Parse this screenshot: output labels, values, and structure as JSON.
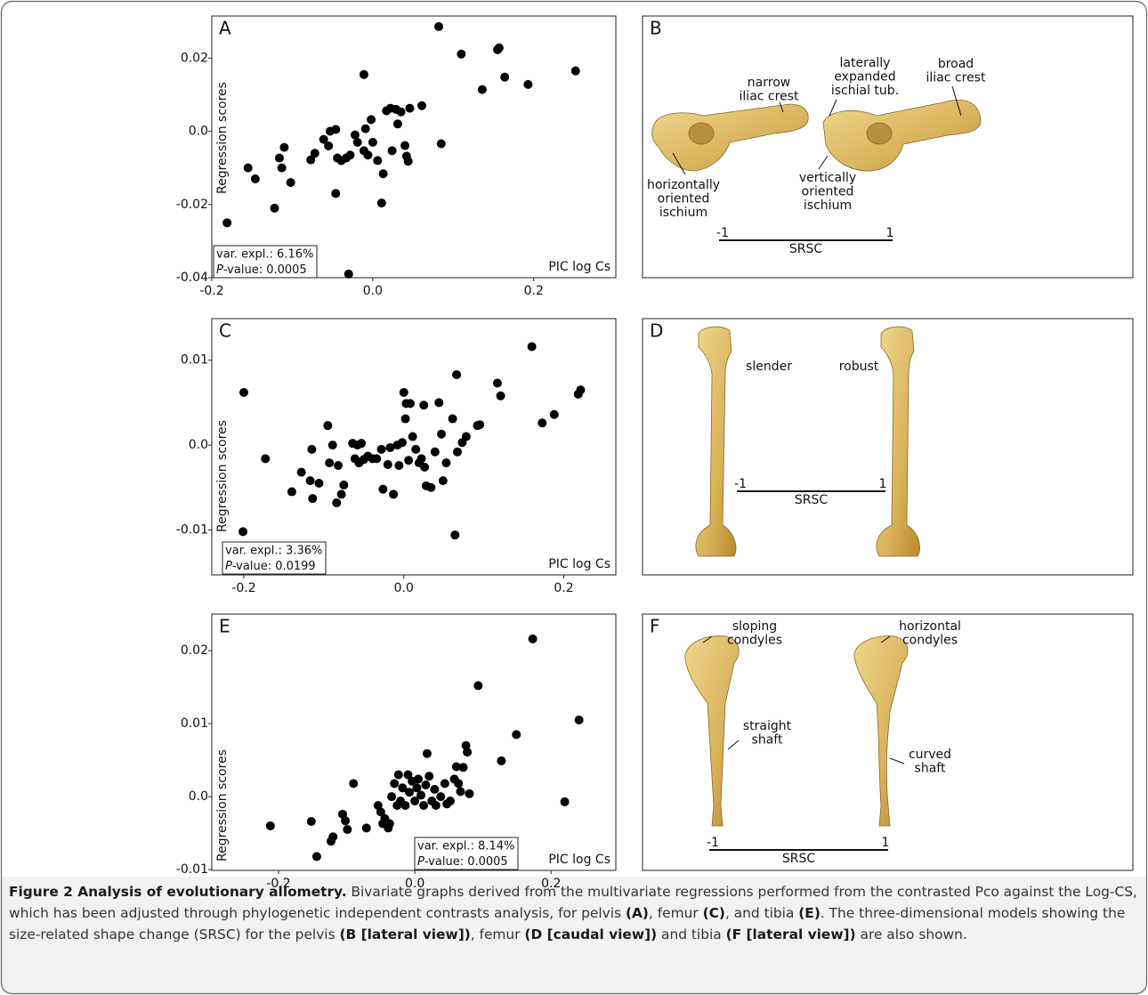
{
  "chart_data": [
    {
      "type": "scatter",
      "panel": "A",
      "ylabel": "Regression scores",
      "xlabel": "PIC log Cs",
      "xlim": [
        -0.2,
        0.302
      ],
      "ylim": [
        -0.04,
        0.0315
      ],
      "xticks": [
        -0.2,
        {
          "value": 0,
          "label": "0.0"
        },
        0.2
      ],
      "yticks": [
        -0.04,
        -0.02,
        {
          "value": 0,
          "label": "0.0"
        },
        0.02
      ],
      "stats": {
        "var_expl": "var. expl.: 6.16%",
        "p_italic": "P",
        "p_rest": "-value: 0.0005"
      },
      "x": [
        -0.181,
        -0.155,
        -0.146,
        -0.102,
        -0.122,
        -0.116,
        -0.113,
        -0.11,
        -0.077,
        -0.072,
        -0.061,
        -0.055,
        -0.053,
        -0.046,
        -0.046,
        -0.044,
        -0.039,
        -0.033,
        -0.03,
        -0.028,
        -0.022,
        -0.019,
        -0.011,
        -0.011,
        -0.009,
        -0.006,
        -0.002,
        0.0,
        0.006,
        0.011,
        0.013,
        0.017,
        0.022,
        0.024,
        0.029,
        0.031,
        0.035,
        0.04,
        0.042,
        0.044,
        0.046,
        0.061,
        0.082,
        0.085,
        0.11,
        0.136,
        0.155,
        0.157,
        0.164,
        0.193,
        0.252
      ],
      "series": [
        {
          "color": "#000000",
          "values": [
            -0.025,
            -0.01,
            -0.013,
            -0.014,
            -0.021,
            -0.0073,
            -0.01,
            -0.0044,
            -0.0078,
            -0.006,
            -0.0022,
            -0.004,
            0.0,
            0.0005,
            -0.017,
            -0.0073,
            -0.008,
            -0.0073,
            -0.039,
            -0.0065,
            -0.001,
            -0.003,
            0.0155,
            -0.0053,
            0.0007,
            -0.0065,
            0.0032,
            -0.003,
            -0.008,
            -0.0196,
            -0.0116,
            0.0056,
            0.0063,
            -0.0053,
            0.006,
            0.002,
            0.0053,
            -0.0039,
            -0.0068,
            -0.0082,
            0.0063,
            0.007,
            0.0286,
            -0.0034,
            0.0211,
            0.0114,
            0.0223,
            0.0228,
            0.0148,
            0.0128,
            0.0165
          ]
        }
      ]
    },
    {
      "type": "scatter",
      "panel": "C",
      "ylabel": "Regression scores",
      "xlabel": "PIC log Cs",
      "xlim": [
        -0.24,
        0.265
      ],
      "ylim": [
        -0.0153,
        0.0149
      ],
      "xticks": [
        -0.2,
        {
          "value": 0,
          "label": "0.0"
        },
        0.2
      ],
      "yticks": [
        -0.01,
        {
          "value": 0,
          "label": "0.0"
        },
        0.01
      ],
      "stats": {
        "var_expl": "var. expl.: 3.36%",
        "p_italic": "P",
        "p_rest": "-value: 0.0199"
      },
      "x": [
        -0.2,
        -0.201,
        -0.173,
        -0.14,
        -0.128,
        -0.117,
        -0.115,
        -0.114,
        -0.106,
        -0.095,
        -0.093,
        -0.089,
        -0.084,
        -0.082,
        -0.078,
        -0.075,
        -0.064,
        -0.061,
        -0.058,
        -0.056,
        -0.053,
        -0.05,
        -0.045,
        -0.039,
        -0.034,
        -0.028,
        -0.026,
        -0.02,
        -0.017,
        -0.013,
        -0.008,
        -0.006,
        -0.002,
        0.0,
        0.002,
        0.003,
        0.006,
        0.008,
        0.011,
        0.015,
        0.019,
        0.022,
        0.025,
        0.026,
        0.028,
        0.034,
        0.039,
        0.044,
        0.047,
        0.049,
        0.053,
        0.061,
        0.064,
        0.066,
        0.067,
        0.073,
        0.078,
        0.092,
        0.095,
        0.117,
        0.121,
        0.16,
        0.173,
        0.188,
        0.218,
        0.221
      ],
      "series": [
        {
          "color": "#000000",
          "values": [
            0.0062,
            -0.0102,
            -0.0016,
            -0.0055,
            -0.0032,
            -0.0042,
            -0.0005,
            -0.0063,
            -0.0045,
            0.0023,
            -0.0021,
            0.0,
            -0.0068,
            -0.0024,
            -0.0058,
            -0.0047,
            0.0002,
            -0.0016,
            0.0,
            -0.0021,
            0.0002,
            -0.0017,
            -0.0013,
            -0.0016,
            -0.0016,
            -0.0005,
            -0.0052,
            -0.0023,
            -0.0003,
            -0.0058,
            0.0,
            -0.0024,
            0.0003,
            0.0062,
            0.0031,
            0.0049,
            -0.0018,
            0.0049,
            0.001,
            -0.0005,
            -0.0021,
            -0.0016,
            0.0047,
            -0.0026,
            -0.0048,
            -0.005,
            -0.0008,
            0.005,
            0.0013,
            -0.0042,
            -0.0021,
            0.0031,
            -0.0106,
            0.0083,
            -0.0008,
            0.0003,
            0.001,
            0.0023,
            0.0024,
            0.0073,
            0.0058,
            0.0116,
            0.0026,
            0.0036,
            0.006,
            0.0065
          ]
        }
      ]
    },
    {
      "type": "scatter",
      "panel": "E",
      "ylabel": "Regression scores",
      "xlabel": "PIC log Cs",
      "xlim": [
        -0.298,
        0.295
      ],
      "ylim": [
        -0.0101,
        0.025
      ],
      "xticks": [
        -0.2,
        {
          "value": 0,
          "label": "0.0"
        },
        0.2
      ],
      "yticks": [
        -0.01,
        {
          "value": 0,
          "label": "0.0"
        },
        0.01,
        0.02
      ],
      "stats": {
        "var_expl": "var. expl.: 8.14%",
        "p_italic": "P",
        "p_rest": "-value: 0.0005"
      },
      "x": [
        -0.212,
        -0.152,
        -0.144,
        -0.123,
        -0.12,
        -0.106,
        -0.102,
        -0.099,
        -0.09,
        -0.071,
        -0.054,
        -0.05,
        -0.047,
        -0.044,
        -0.039,
        -0.037,
        -0.034,
        -0.03,
        -0.026,
        -0.024,
        -0.021,
        -0.018,
        -0.014,
        -0.01,
        -0.008,
        -0.004,
        0.0,
        0.003,
        0.005,
        0.009,
        0.013,
        0.016,
        0.018,
        0.021,
        0.025,
        0.029,
        0.031,
        0.038,
        0.044,
        0.047,
        0.052,
        0.058,
        0.061,
        0.064,
        0.067,
        0.071,
        0.075,
        0.077,
        0.08,
        0.093,
        0.127,
        0.149,
        0.173,
        0.22,
        0.241
      ],
      "series": [
        {
          "color": "#000000",
          "values": [
            -0.004,
            -0.0034,
            -0.0082,
            -0.0061,
            -0.0055,
            -0.0024,
            -0.0033,
            -0.0045,
            0.0018,
            -0.0043,
            -0.0012,
            -0.0021,
            -0.0037,
            -0.003,
            -0.0043,
            -0.0037,
            0.0,
            0.0018,
            -0.0012,
            0.003,
            -0.0006,
            0.0012,
            -0.0012,
            0.003,
            0.0006,
            0.0021,
            -0.0006,
            0.0012,
            0.0024,
            0.0002,
            -0.0012,
            0.0016,
            0.0059,
            0.0028,
            -0.0006,
            0.001,
            -0.0012,
            0.0,
            0.0018,
            -0.001,
            -0.0006,
            0.0024,
            0.0041,
            0.0018,
            0.0007,
            0.004,
            0.007,
            0.0061,
            0.0004,
            0.0152,
            0.0049,
            0.0085,
            0.0216,
            -0.0007,
            0.0105
          ]
        }
      ]
    }
  ],
  "panels": [
    {
      "letter": "B",
      "labels": [
        [
          "narrow",
          "iliac crest"
        ],
        [
          "laterally",
          "expanded",
          "ischial tub."
        ],
        [
          "broad",
          "iliac crest"
        ],
        [
          "horizontally",
          "oriented",
          "ischium"
        ],
        [
          "vertically",
          "oriented",
          "ischium"
        ]
      ],
      "scale": {
        "min": "-1",
        "max": "1",
        "label": "SRSC"
      }
    },
    {
      "letter": "D",
      "labels": [
        [
          "slender"
        ],
        [
          "robust"
        ]
      ],
      "scale": {
        "min": "-1",
        "max": "1",
        "label": "SRSC"
      }
    },
    {
      "letter": "F",
      "labels": [
        [
          "sloping",
          "condyles"
        ],
        [
          "horizontal",
          "condyles"
        ],
        [
          "straight",
          "shaft"
        ],
        [
          "curved",
          "shaft"
        ]
      ],
      "scale": {
        "min": "-1",
        "max": "1",
        "label": "SRSC"
      }
    }
  ],
  "caption": [
    {
      "text": "Figure 2 Analysis of evolutionary allometry.",
      "bold": true
    },
    {
      "text": " Bivariate graphs derived from the multivariate regressions performed from the contrasted Pco against the Log-CS, which has been adjusted through phylogenetic independent contrasts analysis, for pelvis ",
      "bold": false
    },
    {
      "text": "(A)",
      "bold": true
    },
    {
      "text": ", femur ",
      "bold": false
    },
    {
      "text": "(C)",
      "bold": true
    },
    {
      "text": ", and tibia ",
      "bold": false
    },
    {
      "text": "(E)",
      "bold": true
    },
    {
      "text": ". The three-dimensional models showing the size-related shape change (SRSC) for the pelvis ",
      "bold": false
    },
    {
      "text": "(B [lateral view])",
      "bold": true
    },
    {
      "text": ", femur ",
      "bold": false
    },
    {
      "text": "(D [caudal view])",
      "bold": true
    },
    {
      "text": " and tibia ",
      "bold": false
    },
    {
      "text": "(F [lateral view])",
      "bold": true
    },
    {
      "text": " are also shown.",
      "bold": false
    }
  ]
}
